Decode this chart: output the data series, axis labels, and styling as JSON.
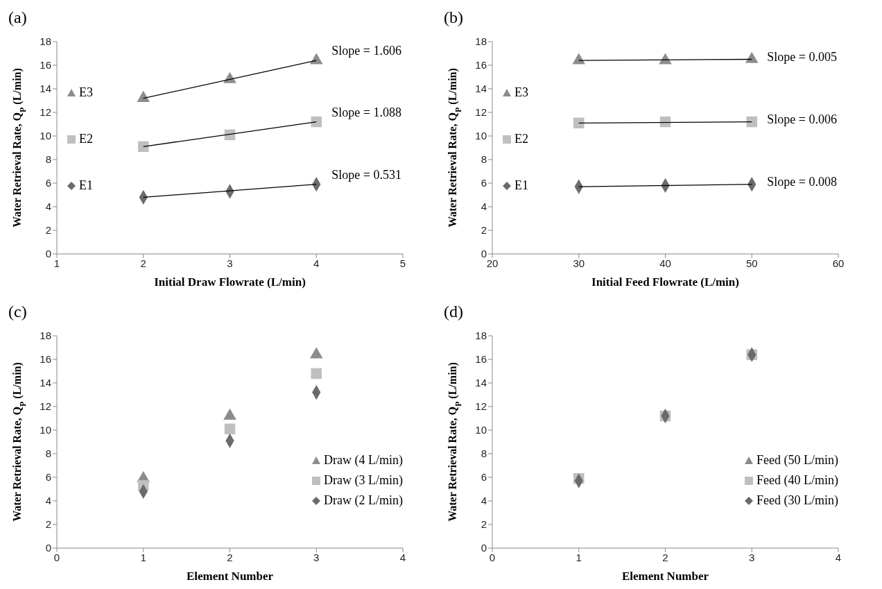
{
  "chart_data": [
    {
      "type": "scatter",
      "title": "(a)",
      "xlabel": "Initial Draw Flowrate (L/min)",
      "ylabel": "Water Retrieval Rate, Q$_{P}$ (L/min)",
      "x": [
        2,
        3,
        4
      ],
      "xlim": [
        1,
        5
      ],
      "xticks": [
        1,
        2,
        3,
        4,
        5
      ],
      "ylim": [
        0,
        18
      ],
      "yticks": [
        0,
        2,
        4,
        6,
        8,
        10,
        12,
        14,
        16,
        18
      ],
      "grid": false,
      "legend": "left",
      "series": [
        {
          "name": "E3",
          "color": "#8c8c8c",
          "marker": "triangle",
          "values": [
            13.2,
            14.8,
            16.4
          ]
        },
        {
          "name": "E2",
          "color": "#bfbfbf",
          "marker": "square",
          "values": [
            9.1,
            10.1,
            11.2
          ]
        },
        {
          "name": "E1",
          "color": "#6b6b6b",
          "marker": "diamond",
          "values": [
            4.8,
            5.3,
            5.9
          ]
        },
        {
          "type": "line",
          "color": "#000000",
          "marker": "none",
          "x": [
            2,
            4
          ],
          "values": [
            13.2,
            16.4
          ]
        },
        {
          "type": "line",
          "color": "#000000",
          "marker": "none",
          "x": [
            2,
            4
          ],
          "values": [
            9.1,
            11.2
          ]
        },
        {
          "type": "line",
          "color": "#000000",
          "marker": "none",
          "x": [
            2,
            4
          ],
          "values": [
            4.8,
            5.9
          ]
        }
      ],
      "annotations": [
        "Slope = 1.606",
        "Slope = 1.088",
        "Slope = 0.531"
      ]
    },
    {
      "type": "scatter",
      "title": "(b)",
      "xlabel": "Initial Feed Flowrate (L/min)",
      "ylabel": "Water Retrieval Rate, Q$_{P}$ (L/min)",
      "x": [
        30,
        40,
        50
      ],
      "xlim": [
        20,
        60
      ],
      "xticks": [
        20,
        30,
        40,
        50,
        60
      ],
      "ylim": [
        0,
        18
      ],
      "yticks": [
        0,
        2,
        4,
        6,
        8,
        10,
        12,
        14,
        16,
        18
      ],
      "grid": false,
      "legend": "left",
      "series": [
        {
          "name": "E3",
          "color": "#8c8c8c",
          "marker": "triangle",
          "values": [
            16.4,
            16.4,
            16.5
          ]
        },
        {
          "name": "E2",
          "color": "#bfbfbf",
          "marker": "square",
          "values": [
            11.1,
            11.2,
            11.2
          ]
        },
        {
          "name": "E1",
          "color": "#6b6b6b",
          "marker": "diamond",
          "values": [
            5.7,
            5.8,
            5.9
          ]
        },
        {
          "type": "line",
          "color": "#000000",
          "marker": "none",
          "x": [
            30,
            50
          ],
          "values": [
            16.4,
            16.5
          ]
        },
        {
          "type": "line",
          "color": "#000000",
          "marker": "none",
          "x": [
            30,
            50
          ],
          "values": [
            11.1,
            11.2
          ]
        },
        {
          "type": "line",
          "color": "#000000",
          "marker": "none",
          "x": [
            30,
            50
          ],
          "values": [
            5.7,
            5.9
          ]
        }
      ],
      "annotations": [
        "Slope = 0.005",
        "Slope = 0.006",
        "Slope = 0.008"
      ]
    },
    {
      "type": "scatter",
      "title": "(c)",
      "xlabel": "Element Number",
      "ylabel": "Water Retrieval Rate, Q$_{P}$ (L/min)",
      "x": [
        1,
        2,
        3
      ],
      "xlim": [
        0,
        4
      ],
      "xticks": [
        0,
        1,
        2,
        3,
        4
      ],
      "ylim": [
        0,
        18
      ],
      "yticks": [
        0,
        2,
        4,
        6,
        8,
        10,
        12,
        14,
        16,
        18
      ],
      "grid": false,
      "legend": "bottom right",
      "series": [
        {
          "name": "Draw (4 L/min)",
          "color": "#8c8c8c",
          "marker": "triangle",
          "values": [
            5.9,
            11.2,
            16.4
          ]
        },
        {
          "name": "Draw (3 L/min)",
          "color": "#bfbfbf",
          "marker": "square",
          "values": [
            5.3,
            10.1,
            14.8
          ]
        },
        {
          "name": "Draw (2 L/min)",
          "color": "#6b6b6b",
          "marker": "diamond",
          "values": [
            4.8,
            9.1,
            13.2
          ]
        }
      ]
    },
    {
      "type": "scatter",
      "title": "(d)",
      "xlabel": "Element Number",
      "ylabel": "Water Retrieval Rate, Q$_{P}$ (L/min)",
      "x": [
        1,
        2,
        3
      ],
      "xlim": [
        0,
        4
      ],
      "xticks": [
        0,
        1,
        2,
        3,
        4
      ],
      "ylim": [
        0,
        18
      ],
      "yticks": [
        0,
        2,
        4,
        6,
        8,
        10,
        12,
        14,
        16,
        18
      ],
      "grid": false,
      "legend": "bottom right",
      "series": [
        {
          "name": "Feed (50 L/min)",
          "color": "#8c8c8c",
          "marker": "triangle",
          "values": [
            null,
            null,
            null
          ]
        },
        {
          "name": "Feed (40 L/min)",
          "color": "#bfbfbf",
          "marker": "square",
          "values": [
            5.9,
            11.2,
            16.4
          ]
        },
        {
          "name": "Feed (30 L/min)",
          "color": "#6b6b6b",
          "marker": "diamond",
          "values": [
            5.7,
            11.2,
            16.4
          ]
        }
      ]
    }
  ]
}
